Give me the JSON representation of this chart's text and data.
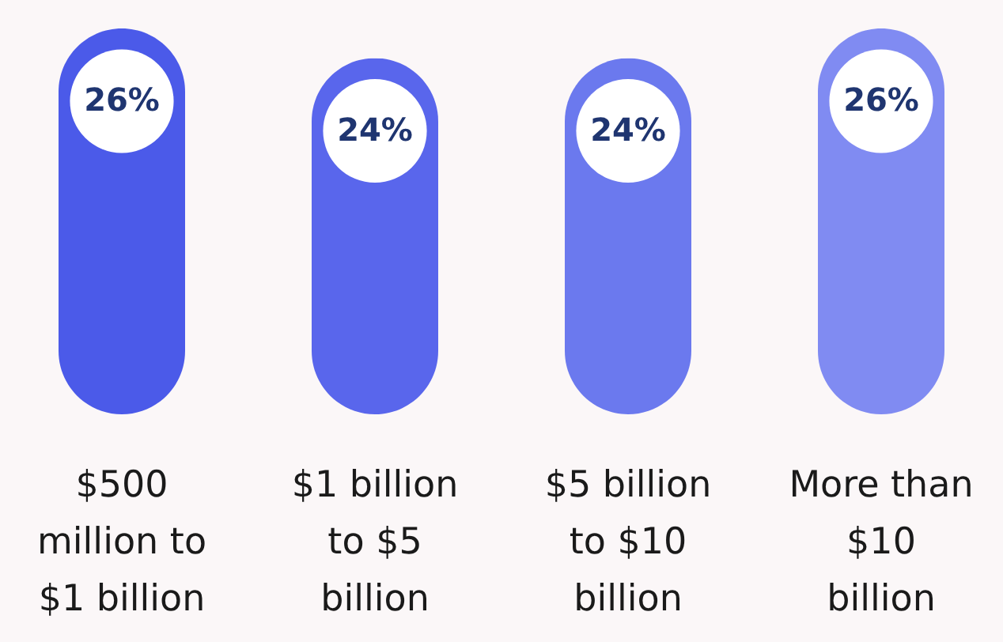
{
  "chart_data": {
    "type": "bar",
    "categories": [
      "$500 million to $1 billion",
      "$1 billion to $5 billion",
      "$5 billion to $10 billion",
      "More than $10 billion"
    ],
    "values": [
      26,
      24,
      24,
      26
    ],
    "colors": [
      "#4b5ae9",
      "#5966ec",
      "#6b79ee",
      "#808bf2"
    ],
    "value_labels": [
      "26%",
      "24%",
      "24%",
      "26%"
    ]
  }
}
